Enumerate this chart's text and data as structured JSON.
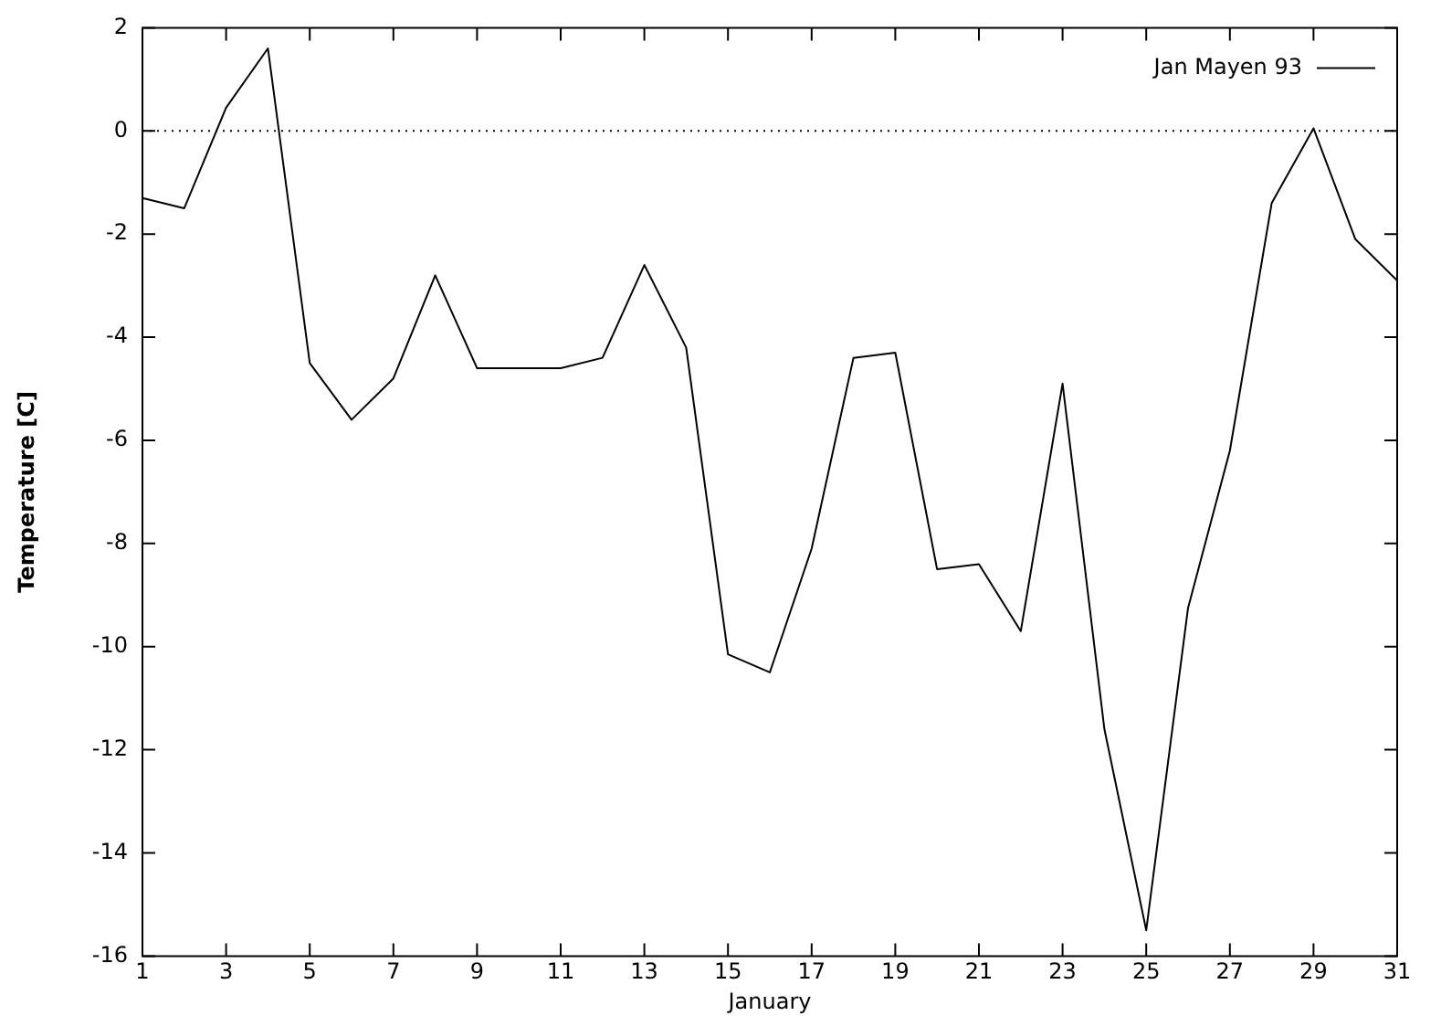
{
  "chart_data": {
    "type": "line",
    "xlabel": "January",
    "ylabel": "Temperature [C]",
    "x": [
      1,
      2,
      3,
      4,
      5,
      6,
      7,
      8,
      9,
      10,
      11,
      12,
      13,
      14,
      15,
      16,
      17,
      18,
      19,
      20,
      21,
      22,
      23,
      24,
      25,
      26,
      27,
      28,
      29,
      30,
      31
    ],
    "series": [
      {
        "name": "Jan Mayen 93",
        "color": "#000000",
        "values": [
          -1.3,
          -1.5,
          0.45,
          1.6,
          -4.5,
          -5.6,
          -4.8,
          -2.8,
          -4.6,
          -4.6,
          -4.6,
          -4.4,
          -2.6,
          -4.2,
          -10.15,
          -10.5,
          -8.1,
          -4.4,
          -4.3,
          -8.5,
          -8.4,
          -9.7,
          -4.9,
          -11.6,
          -15.5,
          -9.25,
          -6.2,
          -1.4,
          0.05,
          -2.1,
          -2.9
        ]
      }
    ],
    "xlim": [
      1,
      31
    ],
    "xticks": [
      1,
      3,
      5,
      7,
      9,
      11,
      13,
      15,
      17,
      19,
      21,
      23,
      25,
      27,
      29,
      31
    ],
    "ylim": [
      -16,
      2
    ],
    "yticks": [
      -16,
      -14,
      -12,
      -10,
      -8,
      -6,
      -4,
      -2,
      0,
      2
    ],
    "ref_lines": [
      {
        "axis": "y",
        "value": 0,
        "color": "#000000",
        "line_style": "dotted"
      }
    ],
    "grid": false,
    "legend": "top right",
    "marker": "none",
    "line_style": "solid"
  }
}
